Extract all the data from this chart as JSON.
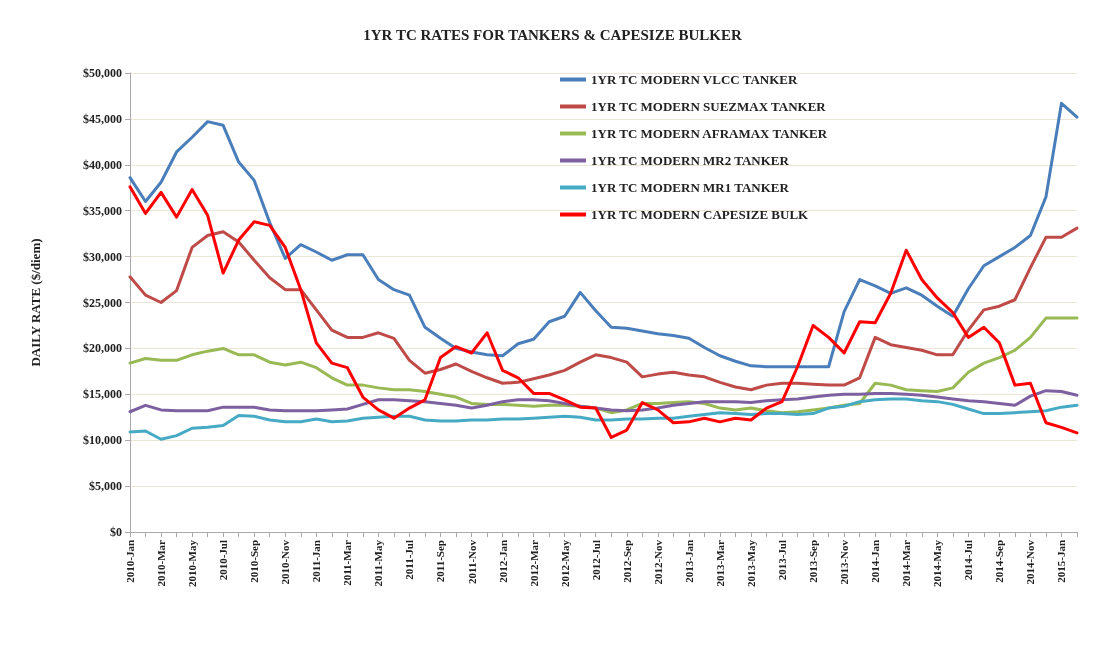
{
  "chart_data": {
    "type": "line",
    "title": "1YR TC RATES FOR TANKERS & CAPESIZE BULKER",
    "ylabel": "DAILY RATE ($/diem)",
    "categories": [
      "2010-Jan",
      null,
      "2010-Mar",
      null,
      "2010-May",
      null,
      "2010-Jul",
      null,
      "2010-Sep",
      null,
      "2010-Nov",
      null,
      "2011-Jan",
      null,
      "2011-Mar",
      null,
      "2011-May",
      null,
      "2011-Jul",
      null,
      "2011-Sep",
      null,
      "2011-Nov",
      null,
      "2012-Jan",
      null,
      "2012-Mar",
      null,
      "2012-May",
      null,
      "2012-Jul",
      null,
      "2012-Sep",
      null,
      "2012-Nov",
      null,
      "2013-Jan",
      null,
      "2013-Mar",
      null,
      "2013-May",
      null,
      "2013-Jul",
      null,
      "2013-Sep",
      null,
      "2013-Nov",
      null,
      "2014-Jan",
      null,
      "2014-Mar",
      null,
      "2014-May",
      null,
      "2014-Jul",
      null,
      "2014-Sep",
      null,
      "2014-Nov",
      null,
      "2015-Jan",
      null
    ],
    "series": [
      {
        "name": "1YR TC MODERN VLCC TANKER",
        "color": "#4a7ebb",
        "values": [
          38600,
          36000,
          38100,
          41400,
          43000,
          44700,
          44300,
          40300,
          38300,
          33700,
          29800,
          31300,
          30500,
          29600,
          30200,
          30200,
          27500,
          26400,
          25800,
          22300,
          21100,
          20000,
          19600,
          19300,
          19200,
          20500,
          21000,
          22900,
          23500,
          26100,
          24100,
          22300,
          22200,
          21900,
          21600,
          21400,
          21100,
          20100,
          19200,
          18600,
          18100,
          18000,
          18000,
          18000,
          18000,
          18000,
          24000,
          27500,
          26800,
          26000,
          26600,
          25800,
          24600,
          23500,
          26500,
          29000,
          30000,
          31000,
          32300,
          36500,
          46700,
          45200
        ]
      },
      {
        "name": "1YR TC MODERN SUEZMAX TANKER",
        "color": "#be4b48",
        "values": [
          27800,
          25800,
          25000,
          26300,
          31000,
          32300,
          32700,
          31600,
          29600,
          27700,
          26400,
          26400,
          24200,
          22000,
          21200,
          21200,
          21700,
          21100,
          18700,
          17300,
          17700,
          18300,
          17500,
          16800,
          16200,
          16300,
          16700,
          17100,
          17600,
          18500,
          19300,
          19000,
          18500,
          16900,
          17200,
          17400,
          17100,
          16900,
          16300,
          15800,
          15500,
          16000,
          16200,
          16200,
          16100,
          16000,
          16000,
          16800,
          21200,
          20400,
          20100,
          19800,
          19300,
          19300,
          22000,
          24200,
          24600,
          25300,
          28800,
          32100,
          32100,
          33100
        ]
      },
      {
        "name": "1YR TC MODERN AFRAMAX TANKER",
        "color": "#98b954",
        "values": [
          18400,
          18900,
          18700,
          18700,
          19300,
          19700,
          20000,
          19300,
          19300,
          18500,
          18200,
          18500,
          17900,
          16800,
          16000,
          16000,
          15700,
          15500,
          15500,
          15300,
          15000,
          14700,
          14000,
          13900,
          13900,
          13800,
          13700,
          13800,
          13800,
          13700,
          13500,
          13000,
          13300,
          14000,
          14000,
          14100,
          14200,
          14000,
          13500,
          13300,
          13500,
          13200,
          13000,
          13100,
          13300,
          13500,
          13800,
          14000,
          16200,
          16000,
          15500,
          15400,
          15300,
          15700,
          17400,
          18400,
          19000,
          19800,
          21200,
          23300,
          23300,
          23300
        ]
      },
      {
        "name": "1YR TC MODERN MR2 TANKER",
        "color": "#7d60a0",
        "values": [
          13100,
          13800,
          13300,
          13200,
          13200,
          13200,
          13600,
          13600,
          13600,
          13300,
          13200,
          13200,
          13200,
          13300,
          13400,
          13900,
          14400,
          14400,
          14300,
          14200,
          14000,
          13800,
          13500,
          13800,
          14200,
          14400,
          14400,
          14300,
          14000,
          13700,
          13500,
          13300,
          13200,
          13300,
          13500,
          13800,
          14000,
          14200,
          14200,
          14200,
          14100,
          14300,
          14400,
          14500,
          14700,
          14900,
          15000,
          15000,
          15100,
          15100,
          15000,
          14900,
          14700,
          14500,
          14300,
          14200,
          14000,
          13800,
          14800,
          15400,
          15300,
          14900
        ]
      },
      {
        "name": "1YR TC MODERN MR1 TANKER",
        "color": "#46aac5",
        "values": [
          10900,
          11000,
          10100,
          10500,
          11300,
          11400,
          11600,
          12700,
          12600,
          12200,
          12000,
          12000,
          12300,
          12000,
          12100,
          12400,
          12500,
          12600,
          12600,
          12200,
          12100,
          12100,
          12200,
          12200,
          12300,
          12300,
          12400,
          12500,
          12600,
          12500,
          12200,
          12200,
          12300,
          12300,
          12400,
          12400,
          12600,
          12800,
          13000,
          12900,
          12800,
          12900,
          12900,
          12800,
          12900,
          13500,
          13700,
          14200,
          14400,
          14500,
          14500,
          14300,
          14200,
          13900,
          13400,
          12900,
          12900,
          13000,
          13100,
          13200,
          13600,
          13800
        ]
      },
      {
        "name": "1YR TC MODERN CAPESIZE BULK",
        "color": "#ff0000",
        "values": [
          37600,
          34700,
          37000,
          34300,
          37300,
          34500,
          28200,
          31800,
          33800,
          33400,
          31000,
          26400,
          20600,
          18400,
          17900,
          14700,
          13300,
          12400,
          13500,
          14400,
          19000,
          20200,
          19500,
          21700,
          17600,
          16800,
          15100,
          15100,
          14400,
          13600,
          13500,
          10300,
          11100,
          14100,
          13300,
          11900,
          12000,
          12400,
          12000,
          12400,
          12200,
          13500,
          14200,
          18000,
          22500,
          21200,
          19500,
          22900,
          22800,
          26000,
          30700,
          27500,
          25500,
          23900,
          21200,
          22300,
          20600,
          16000,
          16200,
          11900,
          11400,
          10800
        ]
      }
    ],
    "ylim": [
      0,
      50000
    ],
    "yticks": [
      {
        "value": 0,
        "label": "$0"
      },
      {
        "value": 5000,
        "label": "$5,000"
      },
      {
        "value": 10000,
        "label": "$10,000"
      },
      {
        "value": 15000,
        "label": "$15,000"
      },
      {
        "value": 20000,
        "label": "$20,000"
      },
      {
        "value": 25000,
        "label": "$25,000"
      },
      {
        "value": 30000,
        "label": "$30,000"
      },
      {
        "value": 35000,
        "label": "$35,000"
      },
      {
        "value": 40000,
        "label": "$40,000"
      },
      {
        "value": 45000,
        "label": "$45,000"
      },
      {
        "value": 50000,
        "label": "$50,000"
      }
    ],
    "grid": "y",
    "legend": "top right",
    "marker": "none",
    "line_style": "solid"
  }
}
